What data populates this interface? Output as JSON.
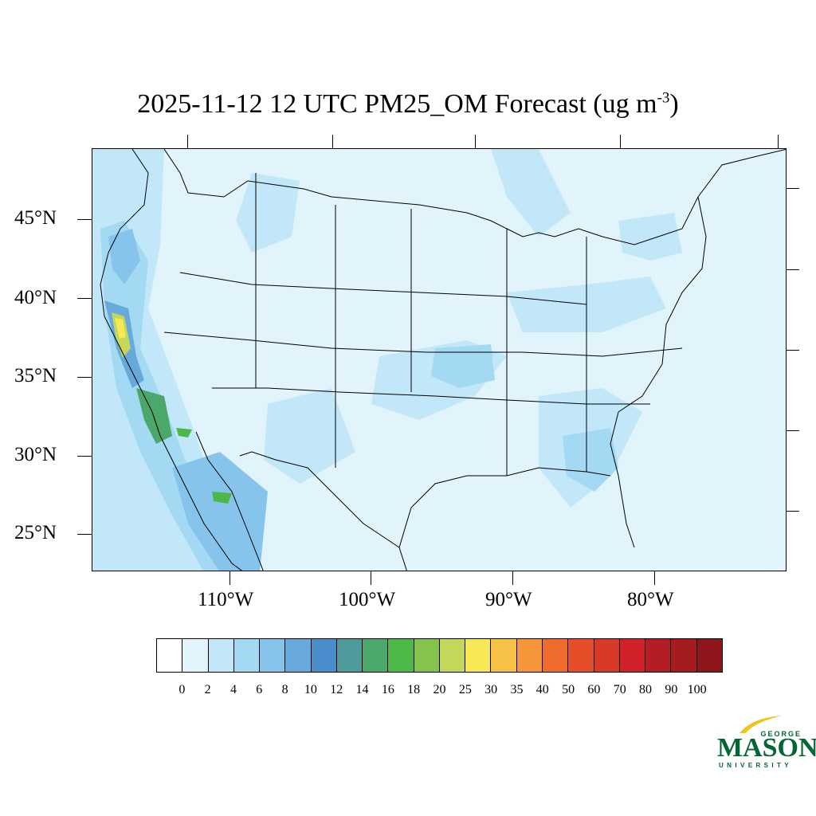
{
  "title": {
    "main": "2025-11-12 12 UTC PM25_OM Forecast (ug m",
    "superscript": "-3",
    "close": ")"
  },
  "map": {
    "lat_labels": [
      "45°N",
      "40°N",
      "35°N",
      "30°N",
      "25°N"
    ],
    "lon_labels": [
      "110°W",
      "100°W",
      "90°W",
      "80°W"
    ],
    "background_color": "#e1f3fb",
    "boundary_color": "#000000"
  },
  "colorbar": {
    "labels": [
      "0",
      "2",
      "4",
      "6",
      "8",
      "10",
      "12",
      "14",
      "16",
      "18",
      "20",
      "25",
      "30",
      "35",
      "40",
      "50",
      "60",
      "70",
      "80",
      "90",
      "100"
    ],
    "colors": [
      "#ffffff",
      "#e1f3fb",
      "#c2e7f8",
      "#a4d9f4",
      "#86c4eb",
      "#68a9dc",
      "#4a8dcb",
      "#4d9b9b",
      "#4aa86a",
      "#4cb848",
      "#86c34e",
      "#c4d75a",
      "#f8e855",
      "#f7c145",
      "#f6963b",
      "#f06c2d",
      "#e54e29",
      "#d93a27",
      "#d22129",
      "#b51d24",
      "#a61b20",
      "#8e1519"
    ]
  },
  "logo": {
    "top": "GEORGE",
    "main": "MASON",
    "bottom": "UNIVERSITY",
    "color": "#006633",
    "accent": "#f0c419"
  }
}
